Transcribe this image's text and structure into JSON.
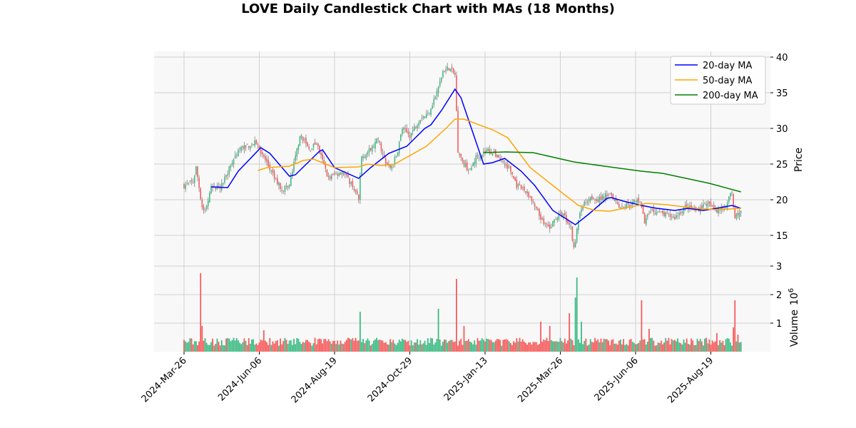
{
  "chart_data": {
    "type": "candlestick",
    "title": "LOVE Daily Candlestick Chart with MAs (18 Months)",
    "x_unit": "trading day index",
    "xticks": [
      {
        "day": 0,
        "label": "2024-Mar-26"
      },
      {
        "day": 50,
        "label": "2024-Jun-06"
      },
      {
        "day": 100,
        "label": "2024-Aug-19"
      },
      {
        "day": 150,
        "label": "2024-Oct-29"
      },
      {
        "day": 200,
        "label": "2025-Jan-13"
      },
      {
        "day": 250,
        "label": "2025-Mar-26"
      },
      {
        "day": 300,
        "label": "2025-Jun-06"
      },
      {
        "day": 350,
        "label": "2025-Aug-19"
      }
    ],
    "price_axis": {
      "label": "Price",
      "ylim": [
        11.5,
        40.8
      ],
      "ticks": [
        15,
        20,
        25,
        30,
        35,
        40
      ]
    },
    "volume_axis": {
      "label": "Volume",
      "scale_label": "10",
      "scale_exp": "6",
      "ylim": [
        0,
        3.0
      ],
      "ticks": [
        1,
        2,
        3
      ]
    },
    "grid": true,
    "legend": {
      "placement": "top-right",
      "entries": [
        {
          "label": "20-day MA",
          "color": "#0000ff"
        },
        {
          "label": "50-day MA",
          "color": "#ffa500"
        },
        {
          "label": "200-day MA",
          "color": "#008000"
        }
      ]
    },
    "colors": {
      "up": "#3dbb84",
      "down": "#f65b5b",
      "wick": "#808080"
    },
    "close_anchors": [
      [
        0,
        22
      ],
      [
        6,
        22.5
      ],
      [
        8,
        24.5
      ],
      [
        12,
        19
      ],
      [
        14,
        18.5
      ],
      [
        18,
        21.5
      ],
      [
        25,
        22
      ],
      [
        29,
        24
      ],
      [
        36,
        27
      ],
      [
        41,
        27.5
      ],
      [
        48,
        28
      ],
      [
        53,
        26
      ],
      [
        60,
        23
      ],
      [
        65,
        21.5
      ],
      [
        70,
        22
      ],
      [
        76,
        28
      ],
      [
        78,
        29
      ],
      [
        83,
        27
      ],
      [
        88,
        28
      ],
      [
        91,
        26
      ],
      [
        96,
        23
      ],
      [
        100,
        23.5
      ],
      [
        105,
        24
      ],
      [
        112,
        22
      ],
      [
        116,
        20
      ],
      [
        118,
        26
      ],
      [
        124,
        27
      ],
      [
        129,
        28.5
      ],
      [
        134,
        25
      ],
      [
        137,
        24.5
      ],
      [
        141,
        26
      ],
      [
        145,
        30
      ],
      [
        150,
        29
      ],
      [
        157,
        31.5
      ],
      [
        162,
        32
      ],
      [
        168,
        35
      ],
      [
        172,
        38
      ],
      [
        176,
        38.5
      ],
      [
        180,
        37.5
      ],
      [
        182,
        27
      ],
      [
        186,
        25
      ],
      [
        190,
        24
      ],
      [
        194,
        26
      ],
      [
        202,
        27
      ],
      [
        209,
        26
      ],
      [
        217,
        24
      ],
      [
        221,
        22
      ],
      [
        228,
        21
      ],
      [
        238,
        17
      ],
      [
        243,
        16
      ],
      [
        247,
        17.5
      ],
      [
        252,
        18
      ],
      [
        257,
        16
      ],
      [
        259,
        13
      ],
      [
        261,
        16
      ],
      [
        264,
        19
      ],
      [
        270,
        20.5
      ],
      [
        276,
        20
      ],
      [
        283,
        21
      ],
      [
        290,
        19
      ],
      [
        297,
        19.5
      ],
      [
        303,
        20
      ],
      [
        306,
        17
      ],
      [
        311,
        18.5
      ],
      [
        318,
        18
      ],
      [
        326,
        17.5
      ],
      [
        333,
        19
      ],
      [
        340,
        18.5
      ],
      [
        347,
        19.5
      ],
      [
        354,
        18.5
      ],
      [
        359,
        19
      ],
      [
        364,
        21
      ],
      [
        366,
        17.5
      ],
      [
        370,
        18.5
      ]
    ],
    "ma20": [
      [
        18,
        21.8
      ],
      [
        29,
        21.7
      ],
      [
        36,
        24
      ],
      [
        51,
        27.3
      ],
      [
        57,
        26.5
      ],
      [
        70,
        23.3
      ],
      [
        74,
        23.5
      ],
      [
        90,
        26.8
      ],
      [
        92,
        27
      ],
      [
        100,
        24.5
      ],
      [
        116,
        23
      ],
      [
        124,
        24.5
      ],
      [
        136,
        26.5
      ],
      [
        148,
        27.5
      ],
      [
        160,
        30
      ],
      [
        164,
        30.5
      ],
      [
        171,
        32.5
      ],
      [
        180,
        35.5
      ],
      [
        184,
        34.3
      ],
      [
        199,
        25
      ],
      [
        205,
        25.2
      ],
      [
        213,
        25.8
      ],
      [
        224,
        24
      ],
      [
        233,
        22
      ],
      [
        245,
        18.5
      ],
      [
        260,
        16.5
      ],
      [
        269,
        18
      ],
      [
        281,
        20.2
      ],
      [
        284,
        20.3
      ],
      [
        292,
        19.8
      ],
      [
        304,
        19.2
      ],
      [
        314,
        18.8
      ],
      [
        326,
        18.5
      ],
      [
        335,
        18.8
      ],
      [
        345,
        18.5
      ],
      [
        354,
        18.8
      ],
      [
        364,
        19.2
      ],
      [
        370,
        18.8
      ]
    ],
    "ma50": [
      [
        49,
        24.1
      ],
      [
        55,
        24.5
      ],
      [
        70,
        24.7
      ],
      [
        79,
        25.5
      ],
      [
        86,
        25.7
      ],
      [
        100,
        24.5
      ],
      [
        116,
        24.6
      ],
      [
        122,
        25
      ],
      [
        131,
        24.8
      ],
      [
        140,
        25
      ],
      [
        161,
        27.5
      ],
      [
        174,
        30
      ],
      [
        180,
        31.3
      ],
      [
        186,
        31.3
      ],
      [
        205,
        29.8
      ],
      [
        215,
        28.7
      ],
      [
        230,
        24.5
      ],
      [
        245,
        22
      ],
      [
        262,
        19.2
      ],
      [
        273,
        18.5
      ],
      [
        283,
        18.4
      ],
      [
        297,
        19
      ],
      [
        307,
        19.5
      ],
      [
        321,
        19.3
      ],
      [
        340,
        18.8
      ],
      [
        354,
        18.6
      ],
      [
        370,
        18.8
      ]
    ],
    "ma200": [
      [
        199,
        26.6
      ],
      [
        214,
        26.7
      ],
      [
        232,
        26.6
      ],
      [
        259,
        25.3
      ],
      [
        276,
        24.8
      ],
      [
        304,
        24
      ],
      [
        318,
        23.7
      ],
      [
        349,
        22.3
      ],
      [
        370,
        21.1
      ]
    ],
    "volume_base": 0.35,
    "volume_spikes": [
      [
        11,
        2.75
      ],
      [
        12,
        0.9
      ],
      [
        53,
        0.75
      ],
      [
        117,
        1.4
      ],
      [
        169,
        1.5
      ],
      [
        181,
        2.55
      ],
      [
        186,
        0.9
      ],
      [
        237,
        1.05
      ],
      [
        243,
        0.9
      ],
      [
        256,
        1.35
      ],
      [
        260,
        1.9
      ],
      [
        261,
        2.6
      ],
      [
        264,
        1.05
      ],
      [
        304,
        1.8
      ],
      [
        309,
        0.8
      ],
      [
        354,
        0.65
      ],
      [
        365,
        0.85
      ],
      [
        366,
        1.8
      ],
      [
        368,
        0.6
      ]
    ]
  }
}
